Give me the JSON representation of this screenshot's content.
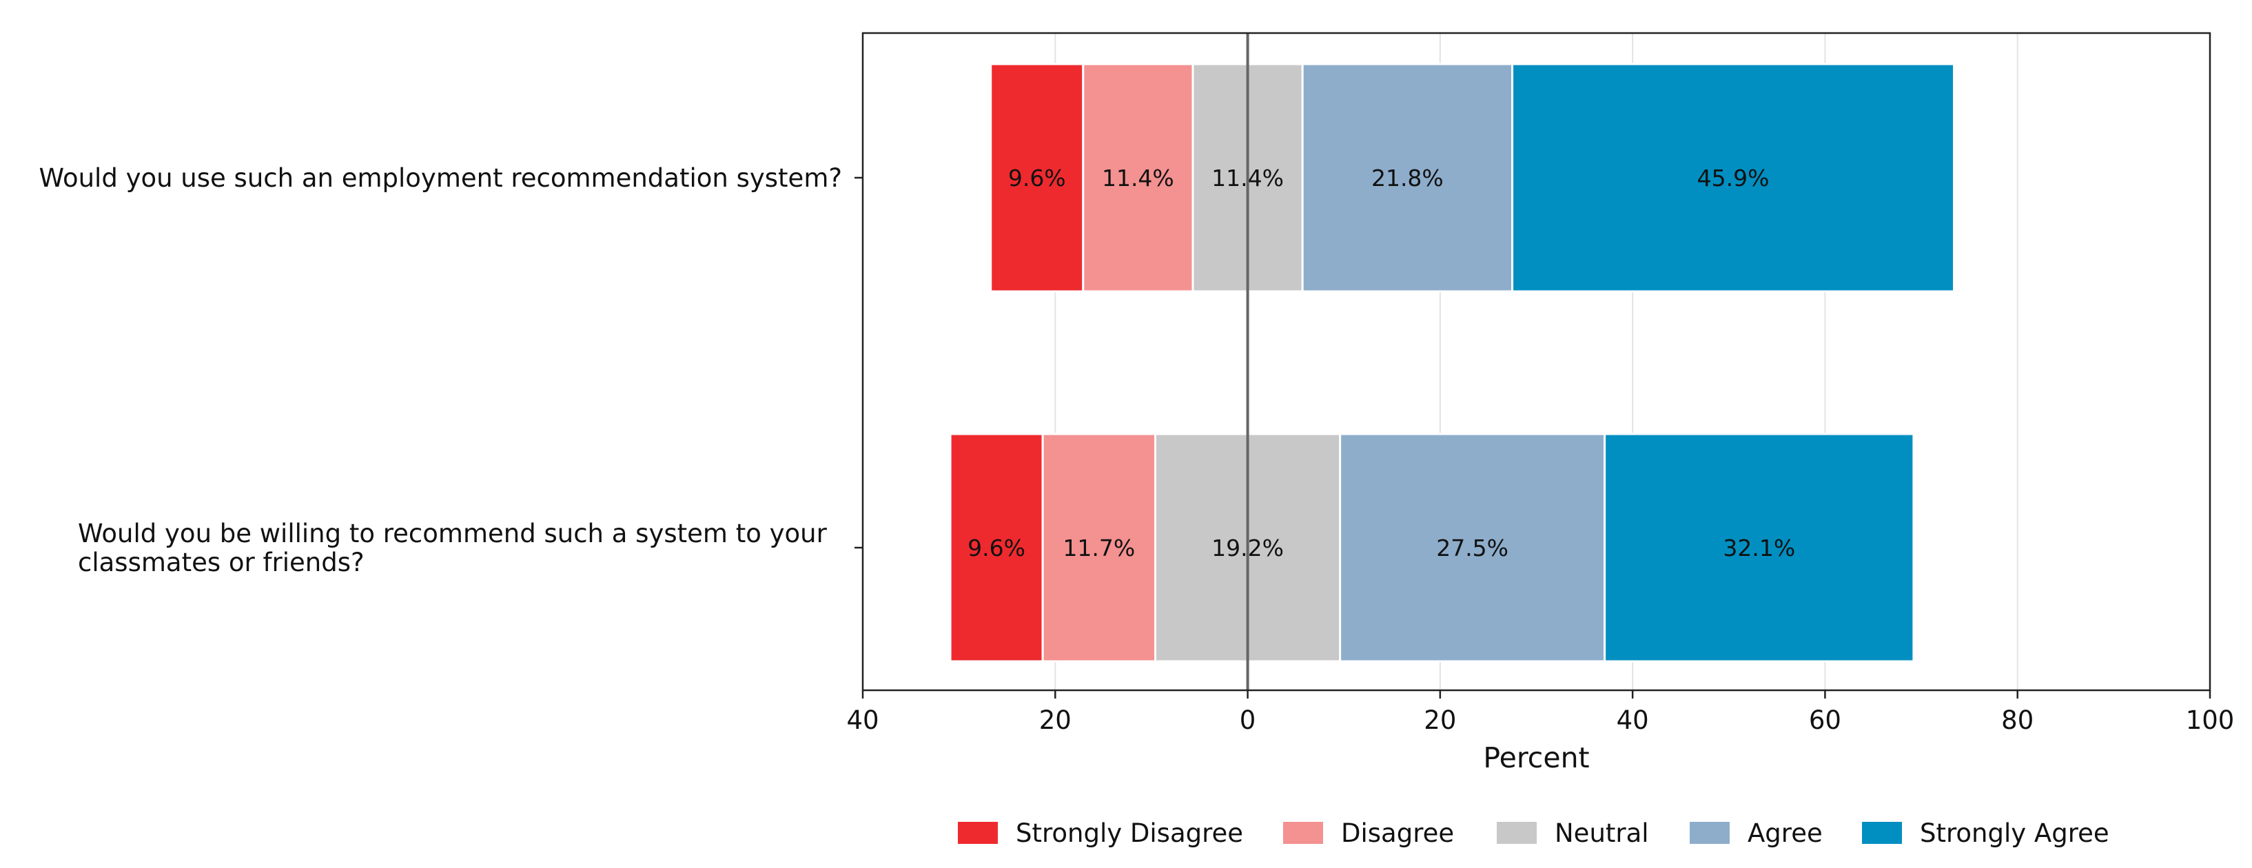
{
  "chart_data": {
    "type": "bar",
    "orientation": "horizontal",
    "stacked": "diverging",
    "categories": [
      "Would you use such an employment recommendation system?",
      "Would you be willing to recommend such a system to your classmates or friends?"
    ],
    "category_lines": [
      [
        "Would you use such an employment recommendation system?"
      ],
      [
        "Would you be willing to recommend such a system to your",
        "classmates or friends?"
      ]
    ],
    "series": [
      {
        "name": "Strongly Disagree",
        "color": "#ee2a2f",
        "values": [
          9.6,
          9.6
        ],
        "labels": [
          "9.6%",
          "9.6%"
        ]
      },
      {
        "name": "Disagree",
        "color": "#f49191",
        "values": [
          11.4,
          11.7
        ],
        "labels": [
          "11.4%",
          "11.7%"
        ]
      },
      {
        "name": "Neutral",
        "color": "#c8c8c8",
        "values": [
          11.4,
          19.2
        ],
        "labels": [
          "11.4%",
          "19.2%"
        ]
      },
      {
        "name": "Agree",
        "color": "#8eadcb",
        "values": [
          21.8,
          27.5
        ],
        "labels": [
          "21.8%",
          "27.5%"
        ]
      },
      {
        "name": "Strongly Agree",
        "color": "#018fc1",
        "values": [
          45.9,
          32.1
        ],
        "labels": [
          "45.9%",
          "32.1%"
        ]
      }
    ],
    "xlabel": "Percent",
    "ylabel": "",
    "xlim": [
      -40,
      100
    ],
    "xticks": [
      -40,
      -20,
      0,
      20,
      40,
      60,
      80,
      100
    ],
    "xtick_labels": [
      "40",
      "20",
      "0",
      "20",
      "40",
      "60",
      "80",
      "100"
    ],
    "grid": "vertical",
    "zero_line": true,
    "legend": "bottom"
  }
}
